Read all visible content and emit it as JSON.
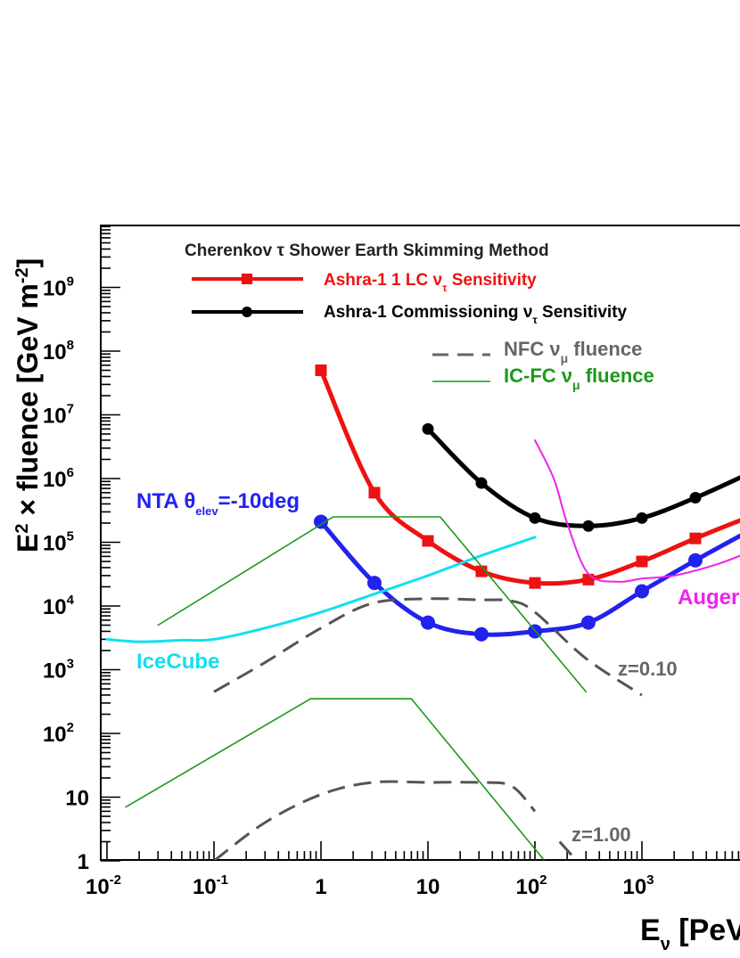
{
  "chart_data": {
    "type": "line",
    "title": "Cherenkov τ Shower Earth Skimming Method",
    "xlabel": "E_ν [PeV]",
    "ylabel": "E² × fluence [GeV m⁻²]",
    "xscale": "log",
    "yscale": "log",
    "xlim": [
      0.01,
      30000
    ],
    "ylim": [
      1,
      10000000000
    ],
    "x_ticks": [
      {
        "base": "10",
        "exp": "-2",
        "value": 0.01
      },
      {
        "base": "10",
        "exp": "-1",
        "value": 0.1
      },
      {
        "base": "1",
        "exp": "",
        "value": 1
      },
      {
        "base": "10",
        "exp": "",
        "value": 10
      },
      {
        "base": "10",
        "exp": "2",
        "value": 100
      },
      {
        "base": "10",
        "exp": "3",
        "value": 1000
      }
    ],
    "y_ticks": [
      {
        "base": "1",
        "exp": "",
        "value": 1
      },
      {
        "base": "10",
        "exp": "",
        "value": 10
      },
      {
        "base": "10",
        "exp": "2",
        "value": 100
      },
      {
        "base": "10",
        "exp": "3",
        "value": 1000
      },
      {
        "base": "10",
        "exp": "4",
        "value": 10000
      },
      {
        "base": "10",
        "exp": "5",
        "value": 100000
      },
      {
        "base": "10",
        "exp": "6",
        "value": 1000000
      },
      {
        "base": "10",
        "exp": "7",
        "value": 10000000
      },
      {
        "base": "10",
        "exp": "8",
        "value": 100000000
      },
      {
        "base": "10",
        "exp": "9",
        "value": 1000000000
      }
    ],
    "legend_title": "Cherenkov τ Shower Earth Skimming Method",
    "legend": [
      {
        "label": "Ashra-1 1 LC",
        "nu_sub": "τ",
        "suffix": "Sensitivity",
        "color": "#ee1111",
        "style": "line-square"
      },
      {
        "label": "Ashra-1 Commissioning",
        "nu_sub": "τ",
        "suffix": "Sensitivity",
        "color": "#000000",
        "style": "line-circle"
      },
      {
        "label": "NFC",
        "nu_sub": "μ",
        "suffix": "fluence",
        "color": "#666666",
        "style": "dashed"
      },
      {
        "label": "IC-FC",
        "nu_sub": "μ",
        "suffix": "fluence",
        "color": "#1a9a1a",
        "style": "thin"
      }
    ],
    "series": [
      {
        "name": "Ashra-1 1 LC ν_τ Sensitivity",
        "color": "#ee1111",
        "marker": "square",
        "x": [
          1,
          3.16,
          10,
          31.6,
          100,
          316,
          1000,
          3160,
          10000
        ],
        "y": [
          50000000,
          600000,
          105000,
          35000,
          23000,
          26000,
          50000,
          115000,
          250000
        ]
      },
      {
        "name": "Ashra-1 Commissioning ν_τ Sensitivity",
        "color": "#000000",
        "marker": "circle",
        "x": [
          10,
          31.6,
          100,
          316,
          1000,
          3160,
          10000
        ],
        "y": [
          6000000,
          850000,
          240000,
          180000,
          240000,
          500000,
          1200000
        ]
      },
      {
        "name": "NTA θ_elev=-10deg",
        "color": "#2222ee",
        "marker": "circle",
        "x": [
          1,
          3.16,
          10,
          31.6,
          100,
          316,
          1000,
          3160,
          10000
        ],
        "y": [
          210000,
          23000,
          5500,
          3600,
          4000,
          5500,
          17000,
          52000,
          150000
        ]
      },
      {
        "name": "IceCube",
        "color": "#11e0f0",
        "marker": "none",
        "x": [
          0.01,
          0.02,
          0.05,
          0.1,
          0.3,
          1,
          3,
          10,
          30,
          100
        ],
        "y": [
          3000,
          2750,
          2900,
          3000,
          4500,
          8000,
          15000,
          30000,
          60000,
          120000
        ]
      },
      {
        "name": "Auger",
        "color": "#ee22ee",
        "marker": "none",
        "x": [
          100,
          150,
          200,
          316,
          600,
          1000,
          2000,
          5000,
          10000
        ],
        "y": [
          4000000,
          1000000,
          200000,
          32000,
          24000,
          27000,
          30000,
          45000,
          70000
        ]
      },
      {
        "name": "IC-FC ν_μ fluence (upper)",
        "color": "#1a9a1a",
        "marker": "none",
        "x": [
          0.03,
          1.3,
          13,
          300
        ],
        "y": [
          5000,
          250000,
          250000,
          450
        ]
      },
      {
        "name": "IC-FC ν_μ fluence (lower)",
        "color": "#1a9a1a",
        "marker": "none",
        "x": [
          0.015,
          0.8,
          7,
          130
        ],
        "y": [
          7,
          350,
          350,
          0.9
        ]
      },
      {
        "name": "NFC ν_μ fluence z=0.10",
        "color": "#555555",
        "marker": "none",
        "dashed": true,
        "x": [
          0.1,
          0.3,
          1,
          3,
          10,
          30,
          60,
          100,
          300,
          1000
        ],
        "y": [
          450,
          1300,
          4500,
          11000,
          13000,
          12500,
          12000,
          8000,
          1500,
          400
        ]
      },
      {
        "name": "NFC ν_μ fluence z=1.00",
        "color": "#555555",
        "marker": "none",
        "dashed": true,
        "x": [
          0.1,
          0.3,
          1,
          3,
          10,
          30,
          60,
          100
        ],
        "y": [
          1,
          4,
          11,
          17,
          17,
          17,
          15,
          6
        ]
      },
      {
        "name": "NFC ν_μ fluence z=1.00 (tail)",
        "color": "#555555",
        "marker": "none",
        "dashed": true,
        "x": [
          170,
          260
        ],
        "y": [
          2,
          0.9
        ]
      }
    ],
    "annotations": [
      {
        "text": "NTA θ",
        "sub": "elev",
        "suffix": "=-10deg",
        "color": "#2222ee"
      },
      {
        "text": "IceCube",
        "color": "#11e0f0"
      },
      {
        "text": "Auger",
        "color": "#ee22ee"
      },
      {
        "text": "z=0.10",
        "color": "#666666"
      },
      {
        "text": "z=1.00",
        "color": "#666666"
      }
    ]
  }
}
